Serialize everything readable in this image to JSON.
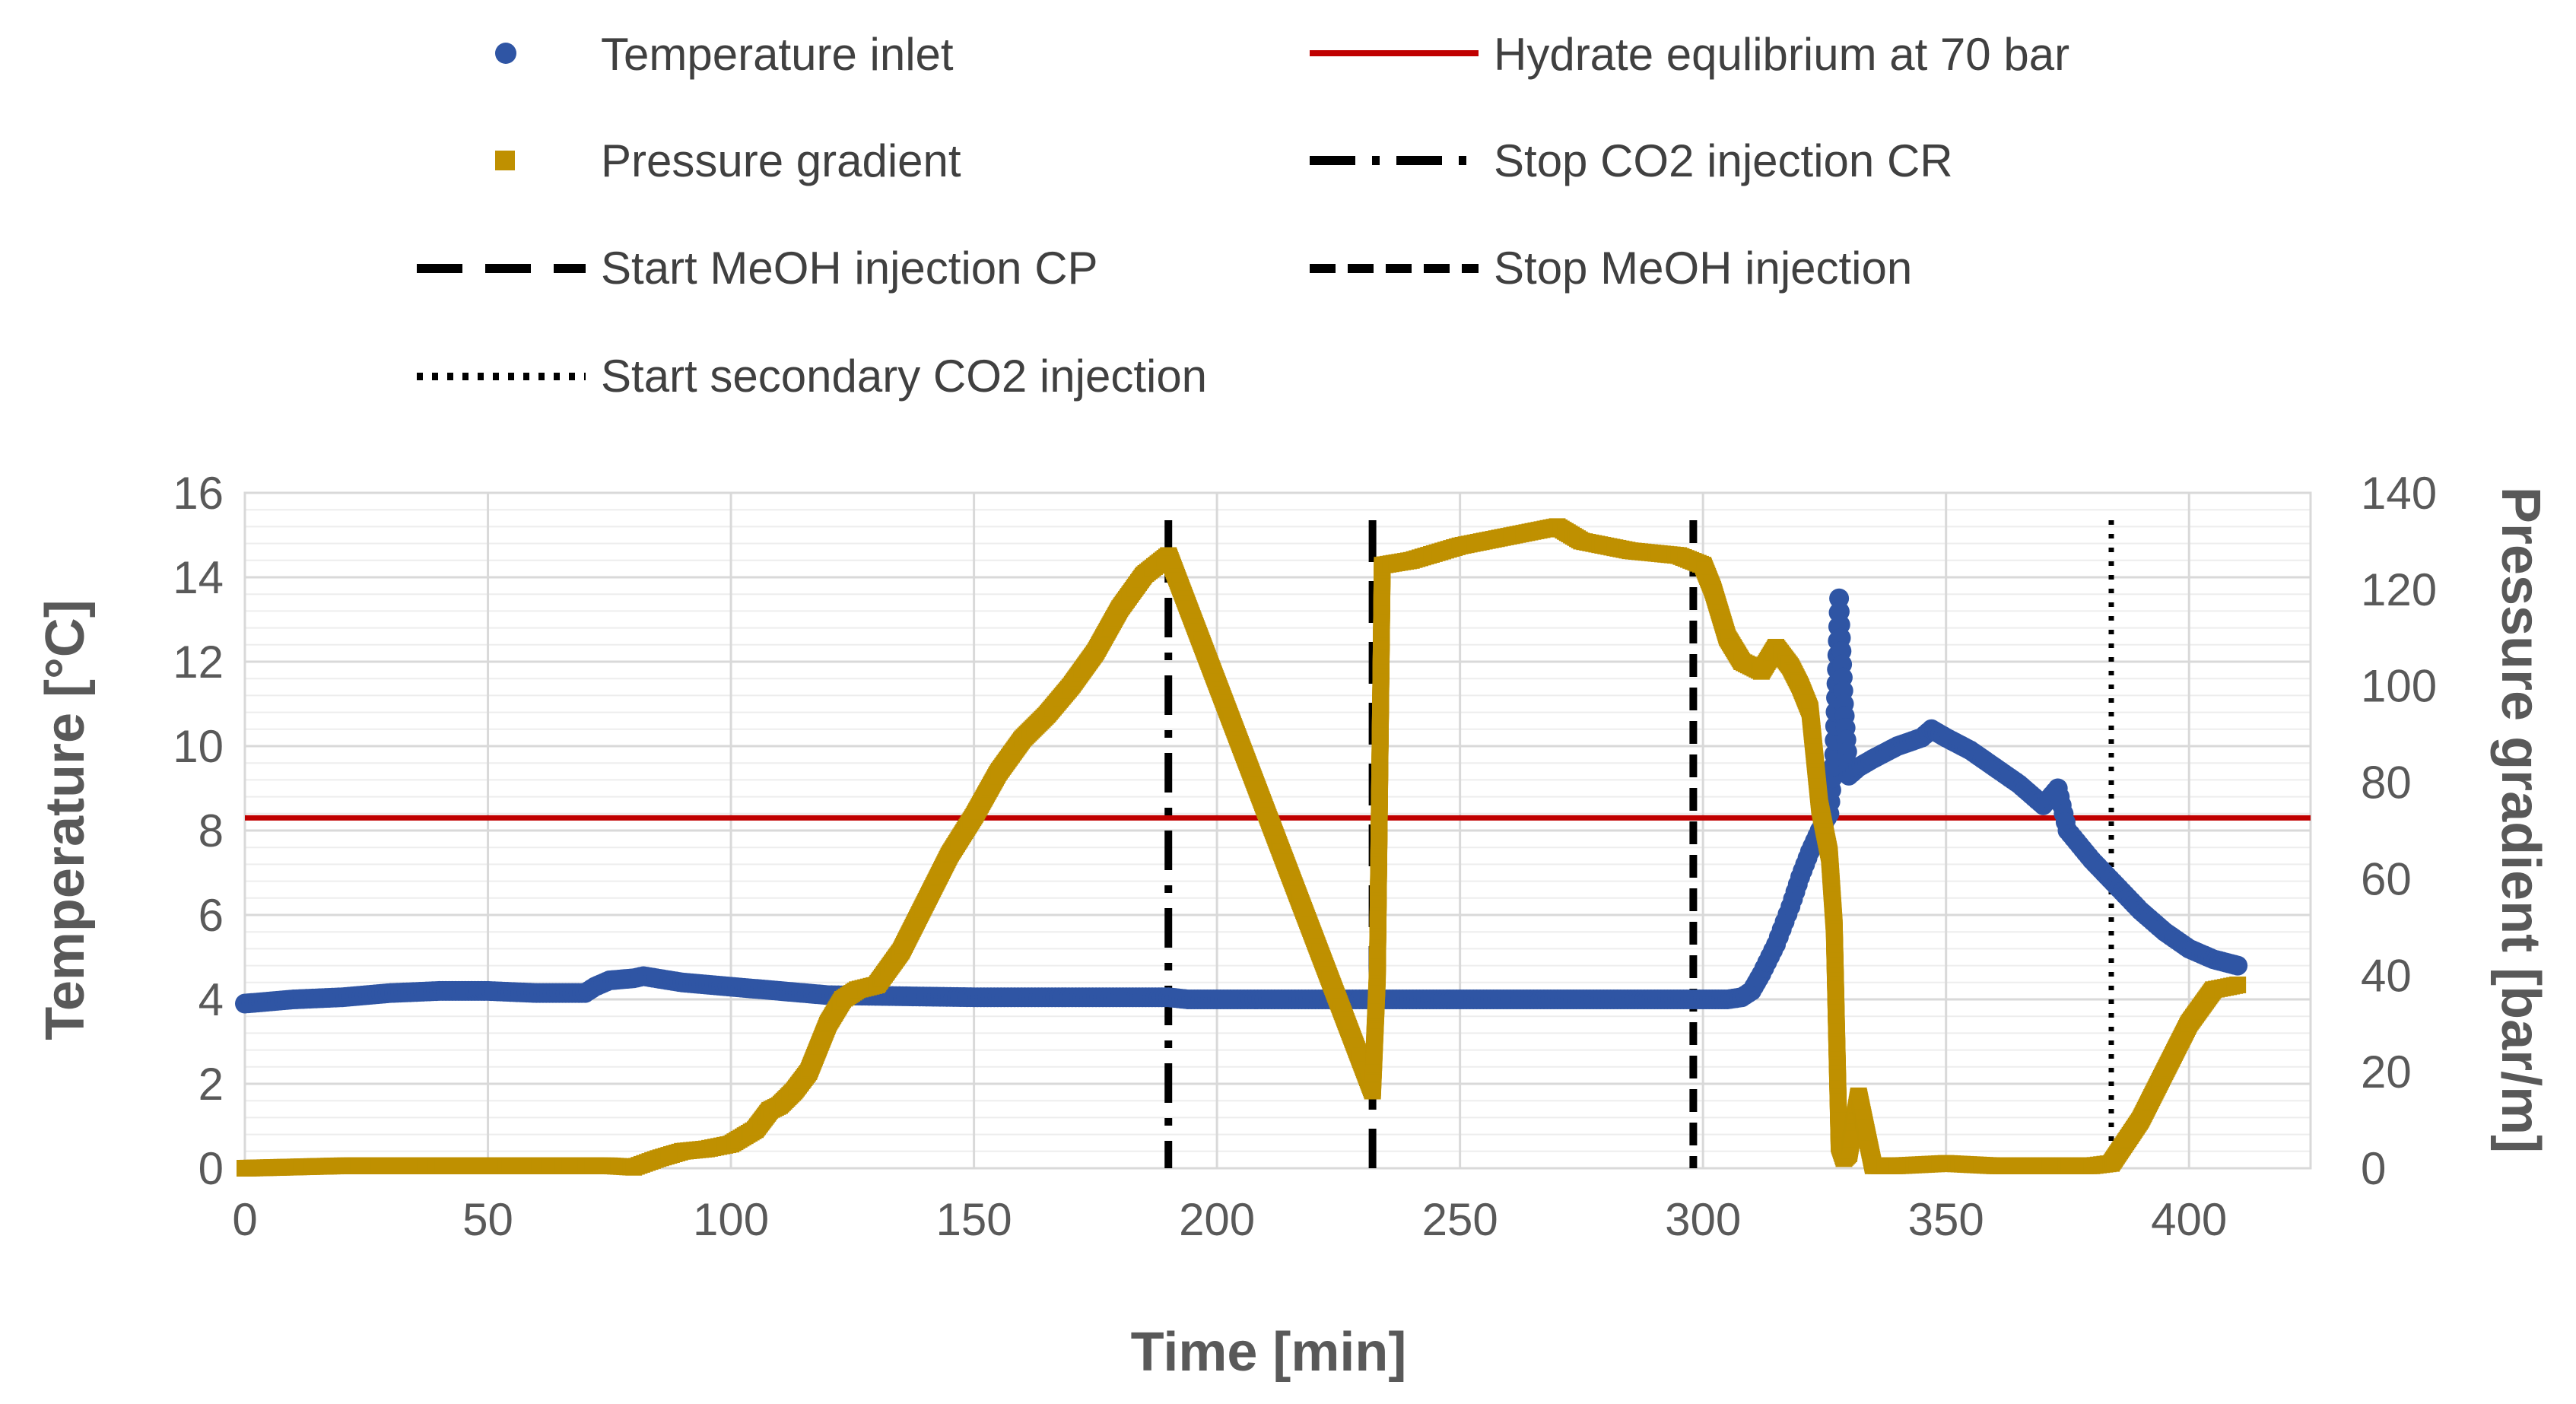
{
  "chart_data": {
    "type": "line",
    "title": "",
    "xlabel": "Time [min]",
    "ylabel": "Temperature [°C]",
    "y2label": "Pressure gradient [bar/m]",
    "xlim": [
      0,
      425
    ],
    "ylim": [
      0,
      16
    ],
    "y2lim": [
      0,
      140
    ],
    "xticks": [
      "0",
      "50",
      "100",
      "150",
      "200",
      "250",
      "300",
      "350",
      "400"
    ],
    "yticks": [
      "0",
      "2",
      "4",
      "6",
      "8",
      "10",
      "12",
      "14",
      "16"
    ],
    "y2ticks": [
      "0",
      "20",
      "40",
      "60",
      "80",
      "100",
      "120",
      "140"
    ],
    "grid": true,
    "colors": {
      "temperature": "#2F55A4",
      "pressure": "#BF9000",
      "hydrate": "#C00000",
      "vlines": "#000000",
      "grid": "#D9D9D9"
    },
    "legend": {
      "temperature": "Temperature inlet",
      "pressure": "Pressure gradient",
      "start_meoh": "Start MeOH injection CP",
      "secondary_co2": "Start secondary CO2 injection",
      "hydrate": "Hydrate equlibrium at 70 bar",
      "stop_co2": "Stop CO2 injection CR",
      "stop_meoh": "Stop MeOH injection"
    },
    "series": [
      {
        "name": "Temperature inlet",
        "axis": "left",
        "marker": "circle",
        "x": [
          0,
          10,
          20,
          30,
          40,
          50,
          60,
          70,
          72,
          75,
          80,
          82,
          90,
          100,
          110,
          115,
          120,
          150,
          180,
          190,
          194,
          200,
          230,
          250,
          270,
          274,
          290,
          300,
          305,
          308,
          310,
          312,
          315,
          318,
          320,
          322,
          324,
          326,
          327,
          328,
          329,
          330,
          332,
          335,
          340,
          345,
          347,
          350,
          355,
          360,
          365,
          370,
          373,
          375,
          380,
          385,
          390,
          395,
          400,
          405,
          410
        ],
        "y": [
          3.9,
          4.0,
          4.05,
          4.15,
          4.2,
          4.2,
          4.15,
          4.15,
          4.3,
          4.45,
          4.5,
          4.55,
          4.4,
          4.3,
          4.2,
          4.15,
          4.1,
          4.05,
          4.05,
          4.05,
          4.0,
          4.0,
          4.0,
          4.0,
          4.0,
          4.0,
          4.0,
          4.0,
          4.0,
          4.05,
          4.2,
          4.6,
          5.3,
          6.2,
          6.9,
          7.5,
          8.0,
          8.4,
          9.8,
          13.5,
          11.0,
          9.3,
          9.5,
          9.7,
          10.0,
          10.2,
          10.4,
          10.2,
          9.9,
          9.5,
          9.1,
          8.6,
          9.0,
          8.0,
          7.3,
          6.7,
          6.1,
          5.6,
          5.2,
          4.95,
          4.8
        ]
      },
      {
        "name": "Pressure gradient",
        "axis": "right",
        "marker": "square",
        "x": [
          0,
          20,
          40,
          60,
          75,
          80,
          85,
          90,
          95,
          100,
          105,
          108,
          110,
          113,
          116,
          118,
          120,
          123,
          126,
          130,
          135,
          140,
          145,
          150,
          155,
          160,
          165,
          170,
          175,
          180,
          185,
          190,
          232,
          233,
          234,
          240,
          250,
          260,
          265,
          270,
          275,
          285,
          295,
          300,
          302,
          305,
          308,
          312,
          315,
          318,
          320,
          322,
          324,
          326,
          327,
          328,
          329,
          330,
          332,
          335,
          340,
          350,
          360,
          370,
          380,
          384,
          390,
          395,
          400,
          405,
          410
        ],
        "y": [
          0,
          0.5,
          0.5,
          0.5,
          0.5,
          0.2,
          2,
          3.5,
          4,
          5,
          8,
          12,
          13,
          16,
          20,
          25,
          30,
          35,
          37,
          38,
          45,
          55,
          65,
          73,
          82,
          89,
          94,
          100,
          107,
          116,
          123,
          127,
          16,
          40,
          125,
          126,
          129,
          131,
          132,
          133,
          130,
          128,
          127,
          125,
          120,
          110,
          105,
          103,
          108,
          104,
          100,
          95,
          75,
          65,
          50,
          5,
          2,
          3,
          15,
          0.5,
          0.5,
          1,
          0.5,
          0.5,
          0.5,
          1,
          10,
          20,
          30,
          37,
          38
        ]
      }
    ],
    "reference_lines": [
      {
        "name": "Hydrate equlibrium at 70 bar",
        "orientation": "horizontal",
        "axis": "left",
        "value": 8.3
      },
      {
        "name": "Stop CO2 injection CR",
        "orientation": "vertical",
        "x": 190
      },
      {
        "name": "Start MeOH injection CP",
        "orientation": "vertical",
        "x": 232
      },
      {
        "name": "Stop MeOH injection",
        "orientation": "vertical",
        "x": 298
      },
      {
        "name": "Start secondary CO2 injection",
        "orientation": "vertical",
        "x": 384
      }
    ]
  }
}
